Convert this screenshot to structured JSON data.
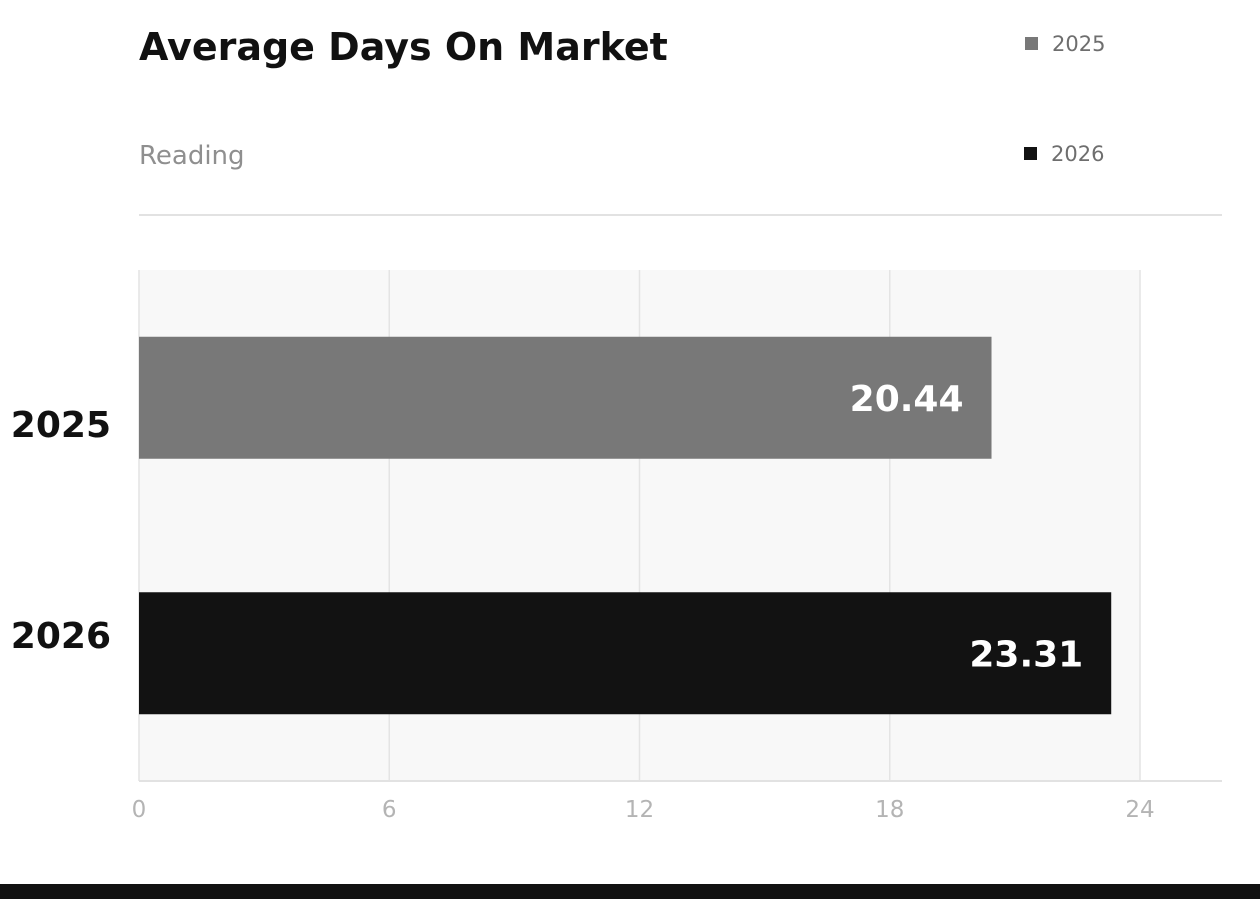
{
  "colors": {
    "series_2025": "#787878",
    "series_2026": "#121212",
    "plot_bg": "#f8f8f8",
    "grid": "#e4e4e4",
    "divider": "#e2e2e2"
  },
  "chart_data": {
    "type": "bar",
    "orientation": "horizontal",
    "title": "Average Days On Market",
    "subtitle": "Reading",
    "categories": [
      "2025",
      "2026"
    ],
    "values": [
      20.44,
      23.31
    ],
    "value_labels": [
      "20.44",
      "23.31"
    ],
    "legend": [
      "2025",
      "2026"
    ],
    "legend_position": "top-right",
    "xlim": [
      0,
      24
    ],
    "xticks": [
      0,
      6,
      12,
      18,
      24
    ],
    "xtick_labels": [
      "0",
      "6",
      "12",
      "18",
      "24"
    ],
    "grid": true
  }
}
